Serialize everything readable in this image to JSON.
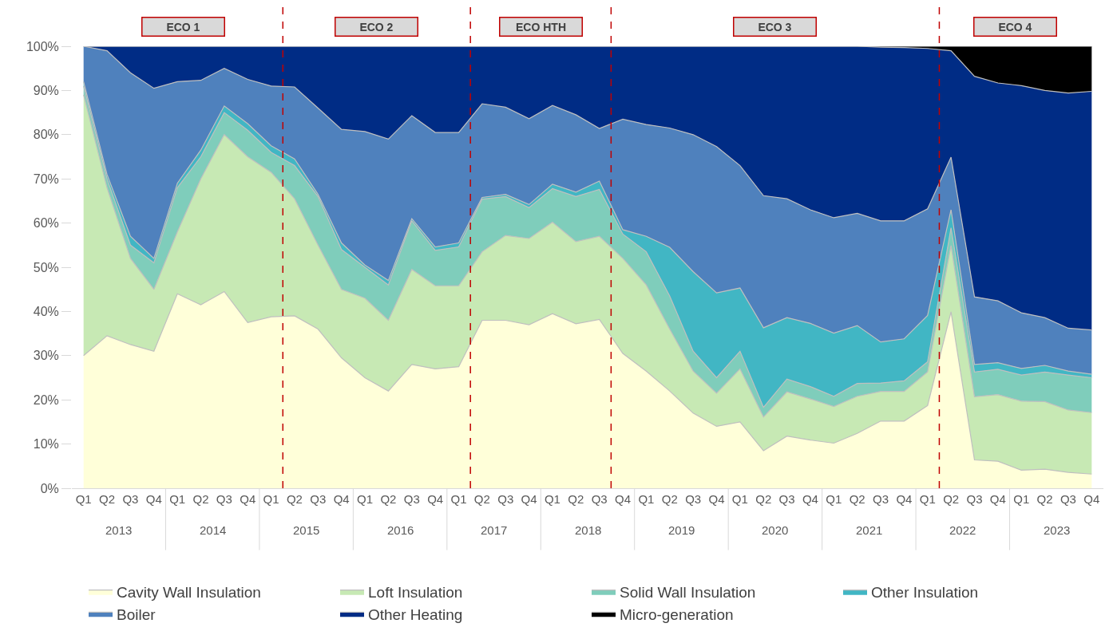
{
  "chart_data": {
    "type": "area",
    "stacked": true,
    "categories": [
      "Q1",
      "Q2",
      "Q3",
      "Q4",
      "Q1",
      "Q2",
      "Q3",
      "Q4",
      "Q1",
      "Q2",
      "Q3",
      "Q4",
      "Q1",
      "Q2",
      "Q3",
      "Q4",
      "Q1",
      "Q2",
      "Q3",
      "Q4",
      "Q1",
      "Q2",
      "Q3",
      "Q4",
      "Q1",
      "Q2",
      "Q3",
      "Q4",
      "Q1",
      "Q2",
      "Q3",
      "Q4",
      "Q1",
      "Q2",
      "Q3",
      "Q4",
      "Q1",
      "Q2",
      "Q3",
      "Q4",
      "Q1",
      "Q2",
      "Q3",
      "Q4"
    ],
    "series": [
      {
        "name": "Cavity Wall Insulation",
        "color": "#ffffd9",
        "values": [
          30,
          34.5,
          32.5,
          31,
          44,
          41.5,
          44.5,
          37.5,
          38.8,
          39,
          36,
          29.5,
          25,
          22,
          28,
          27,
          27.5,
          38,
          38,
          37,
          39.5,
          37.2,
          38.2,
          30.5,
          26.5,
          22,
          17,
          14,
          15,
          8.5,
          11.8,
          10.9,
          10.2,
          12.4,
          15.2,
          15.2,
          18.7,
          39.9,
          6.4,
          6.1,
          4.1,
          4.3,
          3.6,
          3.2
        ]
      },
      {
        "name": "Loft Insulation",
        "color": "#c7e9b4",
        "values": [
          59,
          33.5,
          19.5,
          14,
          14,
          28.5,
          35.5,
          37.5,
          32.7,
          26.5,
          19,
          15.5,
          18,
          16,
          21.5,
          18.8,
          18.3,
          15.5,
          19.2,
          19.5,
          20.7,
          18.6,
          18.8,
          21.5,
          19.5,
          14,
          9.5,
          7.5,
          12,
          7.6,
          10,
          9.3,
          8.3,
          8.4,
          6.7,
          6.7,
          7.6,
          15,
          14.3,
          15.1,
          15.6,
          15.3,
          14.1,
          13.9
        ]
      },
      {
        "name": "Solid Wall Insulation",
        "color": "#7fcdbb",
        "values": [
          2,
          2,
          3,
          6,
          10,
          5,
          5,
          6,
          4.5,
          7.5,
          11,
          9,
          7,
          8,
          11,
          8,
          8.8,
          11.9,
          8.8,
          7,
          7.6,
          10.2,
          10.6,
          5.5,
          7.5,
          7.5,
          4.5,
          3.5,
          4,
          2.2,
          2.9,
          2.8,
          2.3,
          2.9,
          1.9,
          2.4,
          2.3,
          4,
          5.6,
          5.7,
          5.9,
          6.7,
          7.9,
          7.9
        ]
      },
      {
        "name": "Other Insulation",
        "color": "#41b6c4",
        "values": [
          1,
          1,
          2,
          1,
          1,
          1.5,
          1.5,
          1.5,
          1.5,
          1.5,
          0.5,
          1.5,
          0.5,
          1,
          0.5,
          0.8,
          0.9,
          0.4,
          0.5,
          0.7,
          1,
          1,
          1.9,
          1,
          3.5,
          11,
          18,
          19.2,
          14.3,
          18,
          13.9,
          14.3,
          14.3,
          13.1,
          9.3,
          9.5,
          10.5,
          4.1,
          1.7,
          1.5,
          1.5,
          1.5,
          0.9,
          0.8
        ]
      },
      {
        "name": "Boiler",
        "color": "#4f81bd",
        "values": [
          8,
          28,
          37,
          38.5,
          23,
          15.8,
          8.5,
          10,
          13.5,
          16.3,
          19.5,
          25.7,
          30.2,
          32,
          23.3,
          25.9,
          25,
          21.2,
          19.7,
          19.4,
          17.8,
          17.5,
          11.9,
          25,
          25.3,
          27,
          31,
          33.1,
          27.7,
          29.9,
          26.9,
          25.7,
          26.1,
          25.4,
          27.4,
          26.7,
          24.1,
          11.9,
          15.3,
          14,
          12.6,
          10.8,
          9.7,
          10
        ]
      },
      {
        "name": "Other Heating",
        "color": "#002c85",
        "values": [
          0,
          1,
          6,
          9.5,
          8,
          7.7,
          5,
          7.5,
          9,
          9.2,
          14,
          18.8,
          19.3,
          21,
          15.7,
          19.5,
          19.5,
          13,
          13.8,
          16.4,
          13.4,
          15.5,
          18.6,
          16.5,
          17.7,
          18.5,
          20,
          22.7,
          27,
          33.8,
          34.5,
          37,
          38.8,
          37.8,
          39.3,
          39.2,
          36.3,
          24.1,
          49.9,
          49.3,
          51.4,
          51.4,
          53.2,
          54
        ]
      },
      {
        "name": "Micro-generation",
        "color": "#000000",
        "values": [
          0,
          0,
          0,
          0,
          0,
          0,
          0,
          0,
          0,
          0,
          0,
          0,
          0,
          0,
          0,
          0,
          0,
          0,
          0,
          0,
          0,
          0,
          0,
          0,
          0,
          0,
          0,
          0,
          0,
          0,
          0,
          0,
          0,
          0,
          0.2,
          0.3,
          0.5,
          1,
          6.8,
          8.3,
          8.9,
          10,
          10.6,
          10.2
        ]
      }
    ],
    "ylim": [
      0,
      100
    ],
    "yticks": [
      {
        "value": 0,
        "label": "0%"
      },
      {
        "value": 10,
        "label": "10%"
      },
      {
        "value": 20,
        "label": "20%"
      },
      {
        "value": 30,
        "label": "30%"
      },
      {
        "value": 40,
        "label": "40%"
      },
      {
        "value": 50,
        "label": "50%"
      },
      {
        "value": 60,
        "label": "60%"
      },
      {
        "value": 70,
        "label": "70%"
      },
      {
        "value": 80,
        "label": "80%"
      },
      {
        "value": 90,
        "label": "90%"
      },
      {
        "value": 100,
        "label": "100%"
      }
    ],
    "annotations": [
      "2013",
      "2014",
      "2015",
      "2016",
      "2017",
      "2018",
      "2019",
      "2020",
      "2021",
      "2022",
      "2023",
      "ECO 1",
      "ECO 2",
      "ECO HTH",
      "ECO 3",
      "ECO 4"
    ],
    "grid": false,
    "legend": "bottom"
  }
}
